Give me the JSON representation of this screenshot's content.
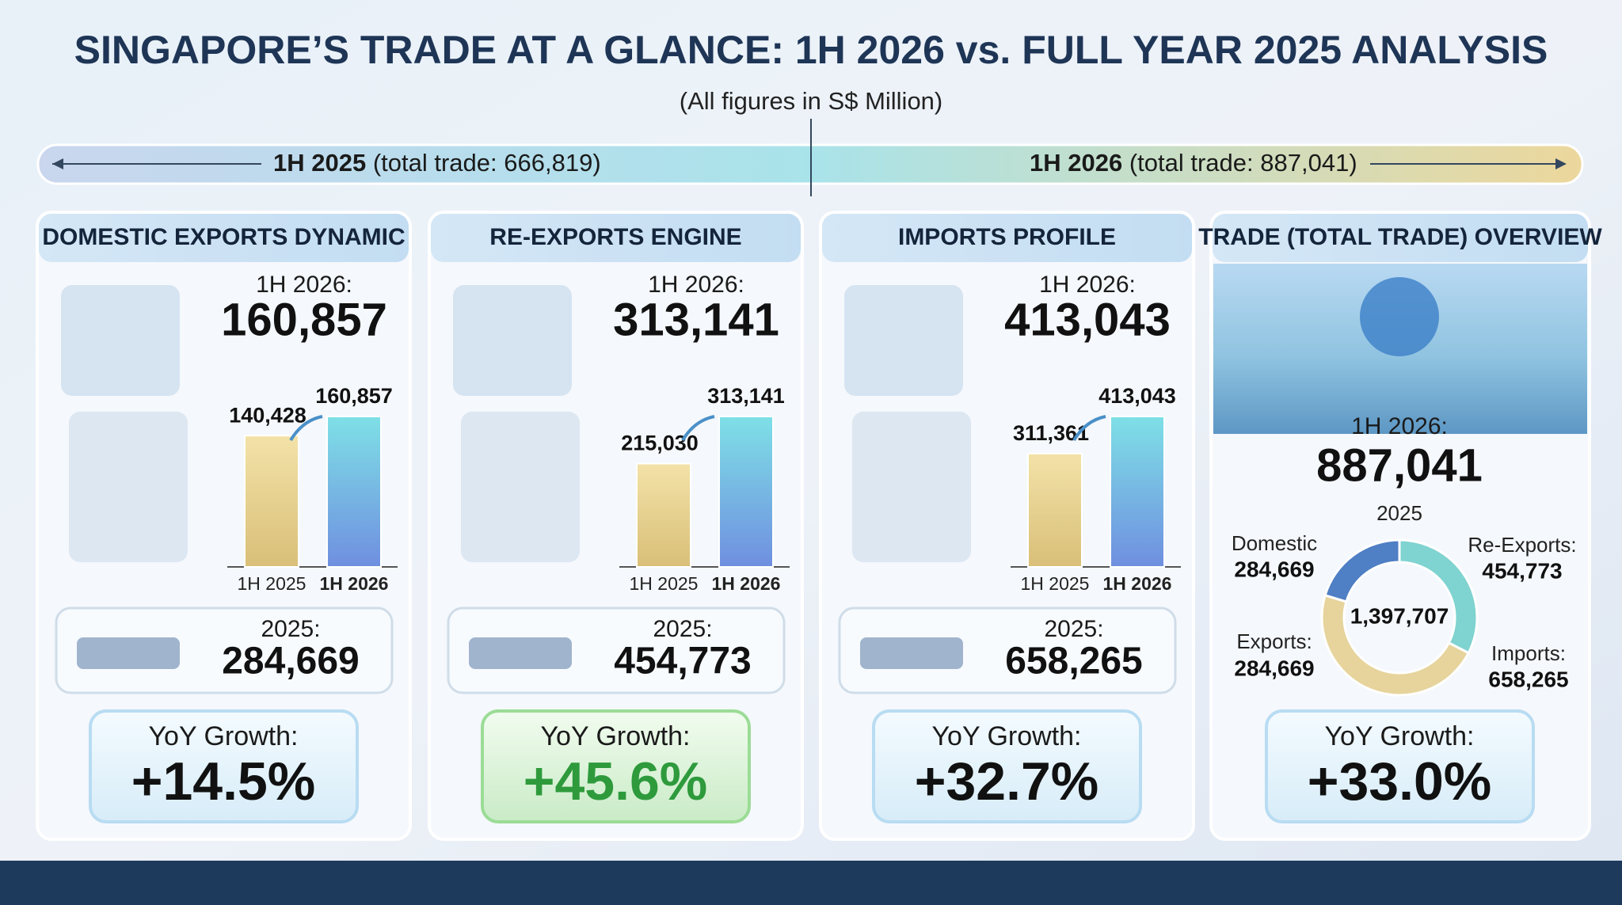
{
  "header": {
    "title": "SINGAPORE’S TRADE AT A GLANCE: 1H 2026 vs. FULL YEAR 2025 ANALYSIS",
    "subtitle": "(All figures in S$ Million)"
  },
  "timeline": {
    "left": {
      "period": "1H 2025",
      "note": "(total trade: 666,819)"
    },
    "right": {
      "period": "1H 2026",
      "note": "(total trade: 887,041)"
    }
  },
  "panels": [
    {
      "title": "DOMESTIC EXPORTS DYNAMIC",
      "current_label": "1H 2026:",
      "current_value": "160,857",
      "chart": {
        "type": "bar",
        "categories": [
          "1H 2025",
          "1H 2026"
        ],
        "values": [
          140428,
          160857
        ],
        "value_labels": [
          "140,428",
          "160,857"
        ]
      },
      "year_label": "2025:",
      "year_value": "284,669",
      "growth_label": "YoY Growth:",
      "growth": "+14.5%",
      "growth_color": "#111111"
    },
    {
      "title": "RE-EXPORTS ENGINE",
      "current_label": "1H 2026:",
      "current_value": "313,141",
      "chart": {
        "type": "bar",
        "categories": [
          "1H 2025",
          "1H 2026"
        ],
        "values": [
          215030,
          313141
        ],
        "value_labels": [
          "215,030",
          "313,141"
        ]
      },
      "year_label": "2025:",
      "year_value": "454,773",
      "growth_label": "YoY Growth:",
      "growth": "+45.6%",
      "growth_color": "#2e9a3c"
    },
    {
      "title": "IMPORTS PROFILE",
      "current_label": "1H 2026:",
      "current_value": "413,043",
      "chart": {
        "type": "bar",
        "categories": [
          "1H 2025",
          "1H 2026"
        ],
        "values": [
          311361,
          413043
        ],
        "value_labels": [
          "311,361",
          "413,043"
        ]
      },
      "year_label": "2025:",
      "year_value": "658,265",
      "growth_label": "YoY Growth:",
      "growth": "+32.7%",
      "growth_color": "#111111"
    }
  ],
  "overview": {
    "title": "TRADE (TOTAL TRADE) OVERVIEW",
    "current_label": "1H 2026:",
    "current_value": "887,041",
    "donut": {
      "type": "pie",
      "title": "2025",
      "total_label": "1,397,707",
      "segments": [
        {
          "name": "Re-Exports:",
          "value": 454773,
          "value_label": "454,773",
          "color": "#7fd3d0"
        },
        {
          "name": "Imports:",
          "value": 658265,
          "value_label": "658,265",
          "color": "#e6d49c"
        },
        {
          "name": "Domestic",
          "value": 284669,
          "value_label": "284,669",
          "color": "#4f7fc4"
        }
      ],
      "extra_label": {
        "name": "Exports:",
        "value_label": "284,669"
      }
    },
    "growth_label": "YoY Growth:",
    "growth": "+33.0%",
    "growth_color": "#111111"
  }
}
